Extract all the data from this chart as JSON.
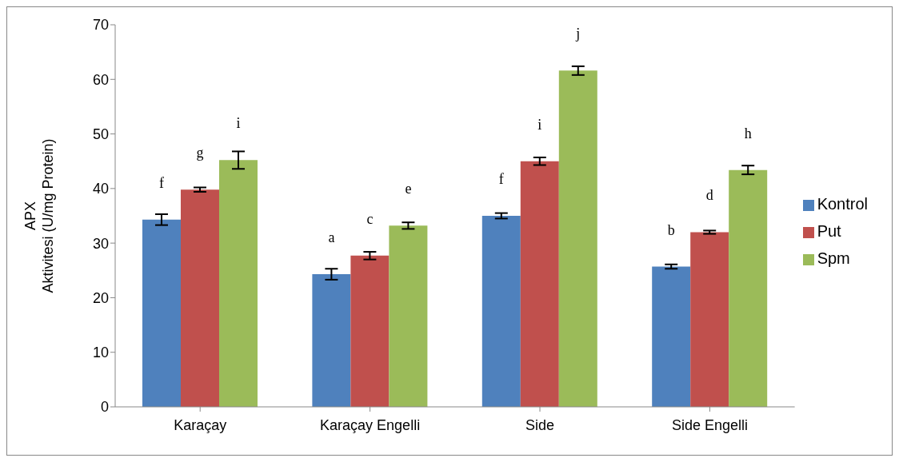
{
  "chart_data": {
    "type": "bar",
    "ylabel": "APX\nAktivitesi (U/mg Protein)",
    "categories": [
      "Karaçay",
      "Karaçay Engelli",
      "Side",
      "Side Engelli"
    ],
    "series": [
      {
        "name": "Kontrol",
        "color": "#4f81bd",
        "values": [
          34.3,
          24.3,
          35.0,
          25.7
        ],
        "errors": [
          1.0,
          1.0,
          0.5,
          0.4
        ],
        "value_labels": [
          "f",
          "a",
          "f",
          "b"
        ]
      },
      {
        "name": "Put",
        "color": "#c0504d",
        "values": [
          39.8,
          27.7,
          45.0,
          32.0
        ],
        "errors": [
          0.4,
          0.7,
          0.7,
          0.3
        ],
        "value_labels": [
          "g",
          "c",
          "i",
          "d"
        ]
      },
      {
        "name": "Spm",
        "color": "#9bbb59",
        "values": [
          45.2,
          33.2,
          61.6,
          43.4
        ],
        "errors": [
          1.6,
          0.6,
          0.8,
          0.8
        ],
        "value_labels": [
          "i",
          "e",
          "j",
          "h"
        ]
      }
    ],
    "ylim": [
      0,
      70
    ],
    "yticks": [
      0,
      10,
      20,
      30,
      40,
      50,
      60,
      70
    ],
    "grid": false,
    "legend": "right"
  }
}
